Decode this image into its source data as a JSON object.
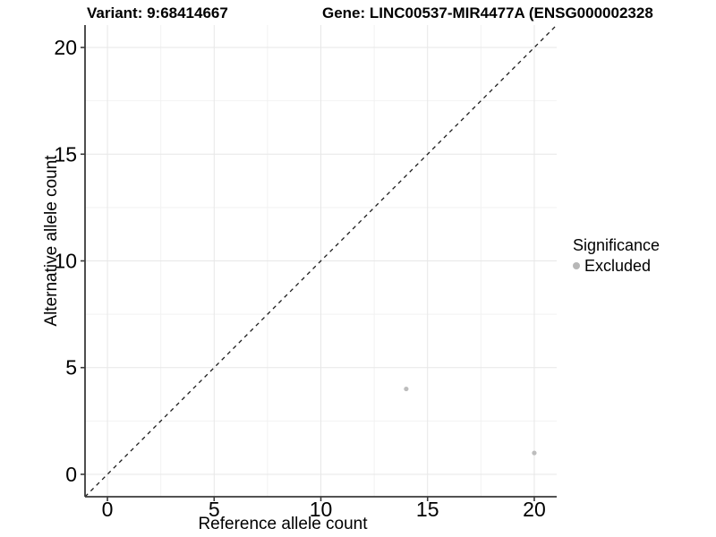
{
  "title": {
    "variant": "Variant: 9:68414667",
    "gene": "Gene: LINC00537-MIR4477A (ENSG000002328"
  },
  "axes": {
    "x_label": "Reference allele count",
    "y_label": "Alternative allele count"
  },
  "legend": {
    "title": "Significance",
    "items": [
      {
        "label": "Excluded",
        "color": "#b7b7b7"
      }
    ]
  },
  "colors": {
    "background": "#ffffff",
    "grid_major": "#e7e7e7",
    "grid_minor": "#f2f2f2",
    "axis_line": "#3a3a3a",
    "reference_line": "#1a1a1a",
    "point": "#bdbdbd"
  },
  "chart_data": {
    "type": "scatter",
    "title": "Variant: 9:68414667   Gene: LINC00537-MIR4477A (ENSG000002328",
    "xlabel": "Reference allele count",
    "ylabel": "Alternative allele count",
    "xlim": [
      -1.05,
      21.05
    ],
    "ylim": [
      -1.05,
      21.05
    ],
    "x_ticks": [
      0,
      5,
      10,
      15,
      20
    ],
    "y_ticks": [
      0,
      5,
      10,
      15,
      20
    ],
    "x_minor_ticks": [
      2.5,
      7.5,
      12.5,
      17.5
    ],
    "y_minor_ticks": [
      2.5,
      7.5,
      12.5,
      17.5
    ],
    "grid": true,
    "legend_position": "right",
    "series": [
      {
        "name": "Excluded",
        "color": "#bdbdbd",
        "points": [
          {
            "x": 14,
            "y": 4
          },
          {
            "x": 20,
            "y": 1
          }
        ]
      }
    ],
    "reference_line": {
      "style": "dashed",
      "from": {
        "x": -1.05,
        "y": -1.05
      },
      "to": {
        "x": 21.05,
        "y": 21.05
      }
    }
  }
}
